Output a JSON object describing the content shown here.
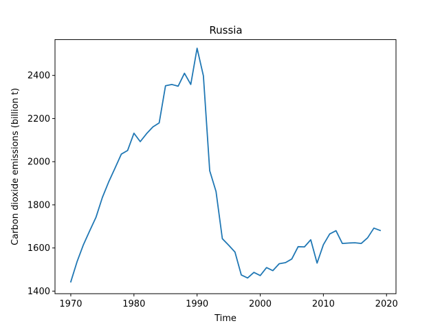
{
  "chart_data": {
    "type": "line",
    "title": "Russia",
    "xlabel": "Time",
    "ylabel": "Carbon dioxide emissions (billion t)",
    "xlim": [
      1967.5,
      2021.5
    ],
    "ylim": [
      1388,
      2566
    ],
    "xticks": [
      1970,
      1980,
      1990,
      2000,
      2010,
      2020
    ],
    "yticks": [
      1400,
      1600,
      1800,
      2000,
      2200,
      2400
    ],
    "grid": false,
    "series": [
      {
        "color": "#1f77b4",
        "x": [
          1970,
          1971,
          1972,
          1973,
          1974,
          1975,
          1976,
          1977,
          1978,
          1979,
          1980,
          1981,
          1982,
          1983,
          1984,
          1985,
          1986,
          1987,
          1988,
          1989,
          1990,
          1991,
          1992,
          1993,
          1994,
          1995,
          1996,
          1997,
          1998,
          1999,
          2000,
          2001,
          2002,
          2003,
          2004,
          2005,
          2006,
          2007,
          2008,
          2009,
          2010,
          2011,
          2012,
          2013,
          2014,
          2015,
          2016,
          2017,
          2018,
          2019
        ],
        "y": [
          1443,
          1537,
          1615,
          1680,
          1743,
          1834,
          1906,
          1970,
          2035,
          2052,
          2132,
          2093,
          2130,
          2161,
          2180,
          2352,
          2358,
          2350,
          2410,
          2358,
          2526,
          2398,
          1958,
          1862,
          1643,
          1613,
          1581,
          1475,
          1461,
          1487,
          1472,
          1509,
          1495,
          1527,
          1532,
          1549,
          1606,
          1605,
          1638,
          1530,
          1615,
          1665,
          1680,
          1621,
          1623,
          1624,
          1621,
          1647,
          1692,
          1681
        ]
      }
    ]
  }
}
